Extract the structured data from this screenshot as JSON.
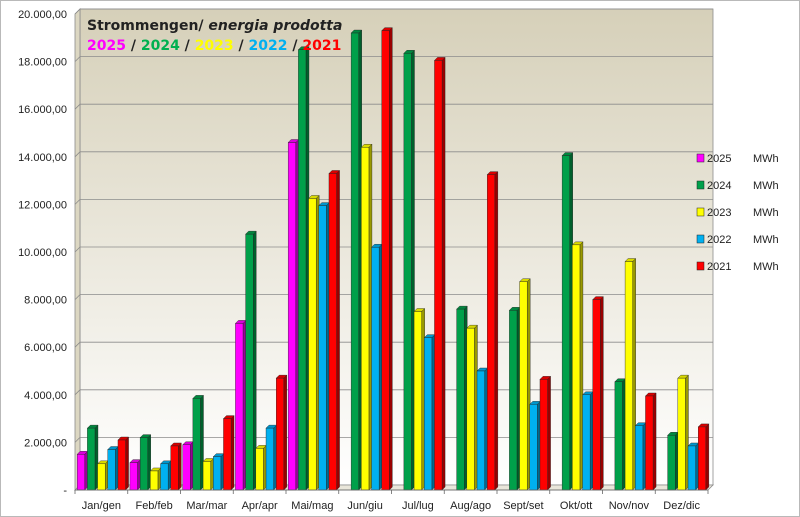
{
  "chart_data": {
    "type": "bar",
    "title_part1": "Strommengen/",
    "title_part2": "energia prodotta",
    "year_labels": [
      {
        "text": "2025",
        "color": "#ff00ff"
      },
      {
        "text": "2024",
        "color": "#00b050"
      },
      {
        "text": "2023",
        "color": "#ffff00"
      },
      {
        "text": "2022",
        "color": "#00b0f0"
      },
      {
        "text": "2021",
        "color": "#ff0000"
      }
    ],
    "separator": " / ",
    "unit": "MWh",
    "categories": [
      "Jan/gen",
      "Feb/feb",
      "Mar/mar",
      "Apr/apr",
      "Mai/mag",
      "Jun/giu",
      "Jul/lug",
      "Aug/ago",
      "Sept/set",
      "Okt/ott",
      "Nov/nov",
      "Dez/dic"
    ],
    "series": [
      {
        "name": "2025",
        "color": "#ff00ff",
        "values": [
          1500,
          1150,
          1900,
          7000,
          14600,
          null,
          null,
          null,
          null,
          null,
          null,
          null
        ]
      },
      {
        "name": "2024",
        "color": "#00a04a",
        "values": [
          2600,
          2200,
          3850,
          10750,
          18500,
          19200,
          18350,
          7600,
          7550,
          14050,
          4550,
          2300
        ]
      },
      {
        "name": "2023",
        "color": "#ffff00",
        "values": [
          1100,
          800,
          1200,
          1750,
          12250,
          14400,
          7500,
          6800,
          8750,
          10300,
          9600,
          4700
        ]
      },
      {
        "name": "2022",
        "color": "#00b0f0",
        "values": [
          1700,
          1100,
          1400,
          2600,
          11950,
          10200,
          6400,
          5000,
          3600,
          4000,
          2700,
          1850
        ]
      },
      {
        "name": "2021",
        "color": "#ff0000",
        "values": [
          2100,
          1850,
          3000,
          4700,
          13300,
          19300,
          18050,
          13250,
          4650,
          8000,
          3950,
          2650
        ]
      }
    ],
    "yticks": [
      "-",
      "2.000,00",
      "4.000,00",
      "6.000,00",
      "8.000,00",
      "10.000,00",
      "12.000,00",
      "14.000,00",
      "16.000,00",
      "18.000,00",
      "20.000,00"
    ],
    "ylim": [
      0,
      20000
    ],
    "grid": true,
    "legend_position": "right"
  }
}
